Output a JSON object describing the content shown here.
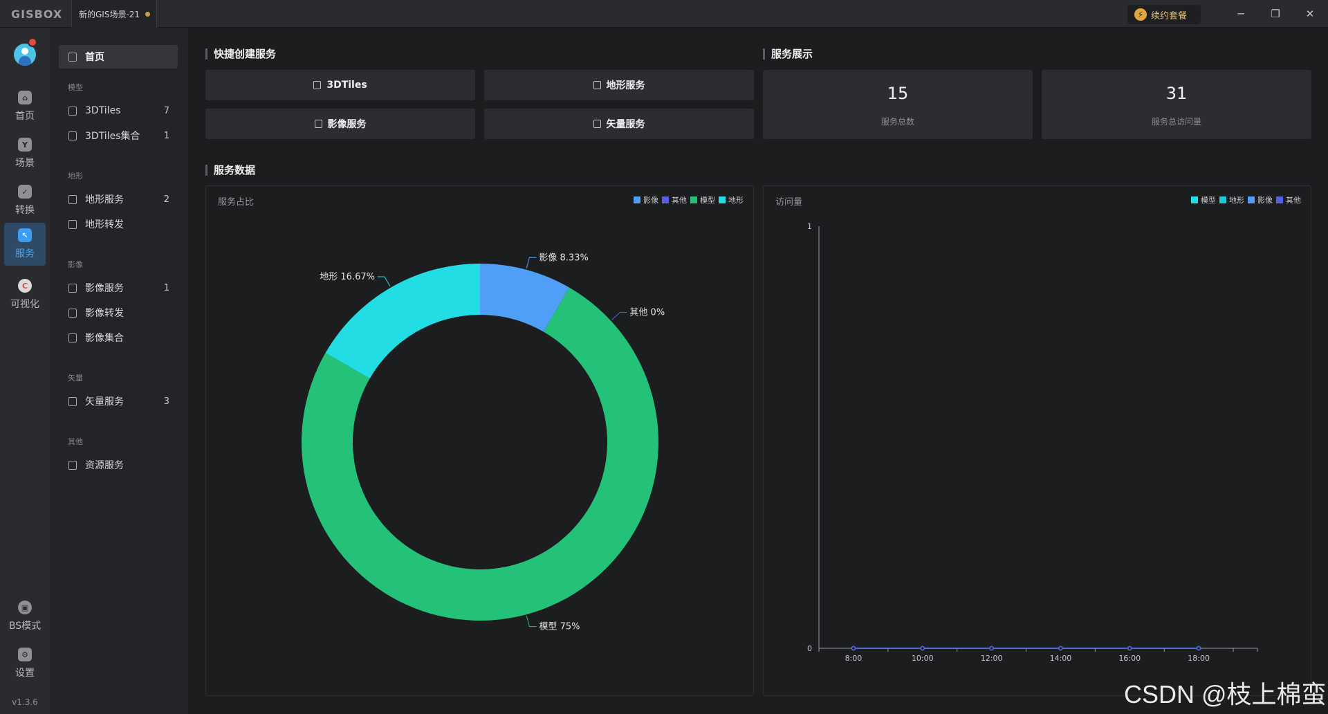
{
  "titlebar": {
    "logo": "GISBOX",
    "tab_title": "新的GIS场景-21",
    "renew_label": "续约套餐"
  },
  "rail": {
    "items": [
      {
        "label": "首页",
        "icon": "home-icon"
      },
      {
        "label": "场景",
        "icon": "scene-icon"
      },
      {
        "label": "转换",
        "icon": "convert-icon"
      },
      {
        "label": "服务",
        "icon": "service-icon"
      },
      {
        "label": "可视化",
        "icon": "visualize-icon"
      }
    ],
    "bs_mode": "BS模式",
    "settings": "设置",
    "version": "v1.3.6"
  },
  "subnav": {
    "home": "首页",
    "groups": [
      {
        "title": "模型",
        "items": [
          {
            "label": "3DTiles",
            "count": "7"
          },
          {
            "label": "3DTiles集合",
            "count": "1"
          }
        ]
      },
      {
        "title": "地形",
        "items": [
          {
            "label": "地形服务",
            "count": "2"
          },
          {
            "label": "地形转发",
            "count": ""
          }
        ]
      },
      {
        "title": "影像",
        "items": [
          {
            "label": "影像服务",
            "count": "1"
          },
          {
            "label": "影像转发",
            "count": ""
          },
          {
            "label": "影像集合",
            "count": ""
          }
        ]
      },
      {
        "title": "矢量",
        "items": [
          {
            "label": "矢量服务",
            "count": "3"
          }
        ]
      },
      {
        "title": "其他",
        "items": [
          {
            "label": "资源服务",
            "count": ""
          }
        ]
      }
    ]
  },
  "main": {
    "quick_title": "快捷创建服务",
    "quick_buttons": [
      "3DTiles",
      "地形服务",
      "影像服务",
      "矢量服务"
    ],
    "display_title": "服务展示",
    "stats": [
      {
        "value": "15",
        "label": "服务总数"
      },
      {
        "value": "31",
        "label": "服务总访问量"
      }
    ],
    "data_title": "服务数据"
  },
  "colors": {
    "image": "#4f9ef7",
    "other": "#5560e6",
    "model": "#24c278",
    "terrain": "#22dde4",
    "accent": "#3b9ef0"
  },
  "chart_data": [
    {
      "type": "pie",
      "title": "服务占比",
      "legend": [
        "影像",
        "其他",
        "模型",
        "地形"
      ],
      "legend_position": "top-right",
      "slices": [
        {
          "name": "影像",
          "value": 8.33,
          "label": "影像 8.33%"
        },
        {
          "name": "其他",
          "value": 0,
          "label": "其他 0%"
        },
        {
          "name": "模型",
          "value": 75,
          "label": "模型 75%"
        },
        {
          "name": "地形",
          "value": 16.67,
          "label": "地形 16.67%"
        }
      ]
    },
    {
      "type": "line",
      "title": "访问量",
      "legend": [
        "模型",
        "地形",
        "影像",
        "其他"
      ],
      "legend_position": "top-right",
      "x": [
        "8:00",
        "10:00",
        "12:00",
        "14:00",
        "16:00",
        "18:00"
      ],
      "ylim": [
        0,
        1
      ],
      "yticks": [
        "0",
        "1"
      ],
      "series": [
        {
          "name": "模型",
          "values": [
            0,
            0,
            0,
            0,
            0,
            0
          ]
        },
        {
          "name": "地形",
          "values": [
            0,
            0,
            0,
            0,
            0,
            0
          ]
        },
        {
          "name": "影像",
          "values": [
            0,
            0,
            0,
            0,
            0,
            0
          ]
        },
        {
          "name": "其他",
          "values": [
            0,
            0,
            0,
            0,
            0,
            0
          ]
        }
      ]
    }
  ]
}
